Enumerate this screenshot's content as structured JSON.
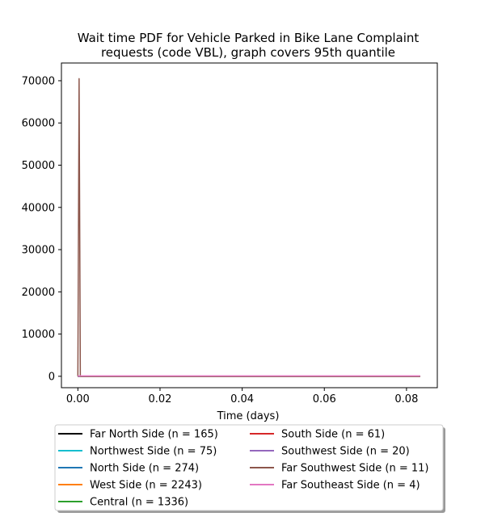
{
  "chart_data": {
    "type": "line",
    "title": "Wait time PDF for Vehicle Parked in Bike Lane Complaint\nrequests (code VBL), graph covers 95th quantile",
    "xlabel": "Time (days)",
    "ylabel": "",
    "xlim": [
      -0.004,
      0.0875
    ],
    "ylim": [
      -2700,
      74200
    ],
    "xticks": [
      0.0,
      0.02,
      0.04,
      0.06,
      0.08
    ],
    "xtick_labels": [
      "0.00",
      "0.02",
      "0.04",
      "0.06",
      "0.08"
    ],
    "yticks": [
      0,
      10000,
      20000,
      30000,
      40000,
      50000,
      60000,
      70000
    ],
    "ytick_labels": [
      "0",
      "10000",
      "20000",
      "30000",
      "40000",
      "50000",
      "60000",
      "70000"
    ],
    "grid": false,
    "legend_placement": "below-center, 2 columns",
    "series": [
      {
        "name": "Far North Side (n = 165)",
        "color": "#000000",
        "x": [
          0,
          0.0833
        ],
        "y": [
          0,
          0
        ]
      },
      {
        "name": "Northwest Side (n = 75)",
        "color": "#17becf",
        "x": [
          0,
          0.0833
        ],
        "y": [
          0,
          0
        ]
      },
      {
        "name": "North Side (n = 274)",
        "color": "#1f77b4",
        "x": [
          0,
          0.0833
        ],
        "y": [
          0,
          0
        ]
      },
      {
        "name": "West Side (n = 2243)",
        "color": "#ff7f0e",
        "x": [
          0,
          0.0833
        ],
        "y": [
          0,
          0
        ]
      },
      {
        "name": "Central (n = 1336)",
        "color": "#2ca02c",
        "x": [
          0,
          0.0833
        ],
        "y": [
          0,
          0
        ]
      },
      {
        "name": "South Side (n = 61)",
        "color": "#d62728",
        "x": [
          0,
          0.0833
        ],
        "y": [
          0,
          0
        ]
      },
      {
        "name": "Southwest Side (n = 20)",
        "color": "#9467bd",
        "x": [
          0,
          0.0833
        ],
        "y": [
          0,
          0
        ]
      },
      {
        "name": "Far Southwest Side (n = 11)",
        "color": "#8c564b",
        "x": [
          0,
          0.0003,
          0.0006,
          0.0833
        ],
        "y": [
          0,
          70500,
          0,
          0
        ]
      },
      {
        "name": "Far Southeast Side (n = 4)",
        "color": "#e377c2",
        "x": [
          0,
          0.0833
        ],
        "y": [
          100,
          100
        ]
      }
    ]
  }
}
